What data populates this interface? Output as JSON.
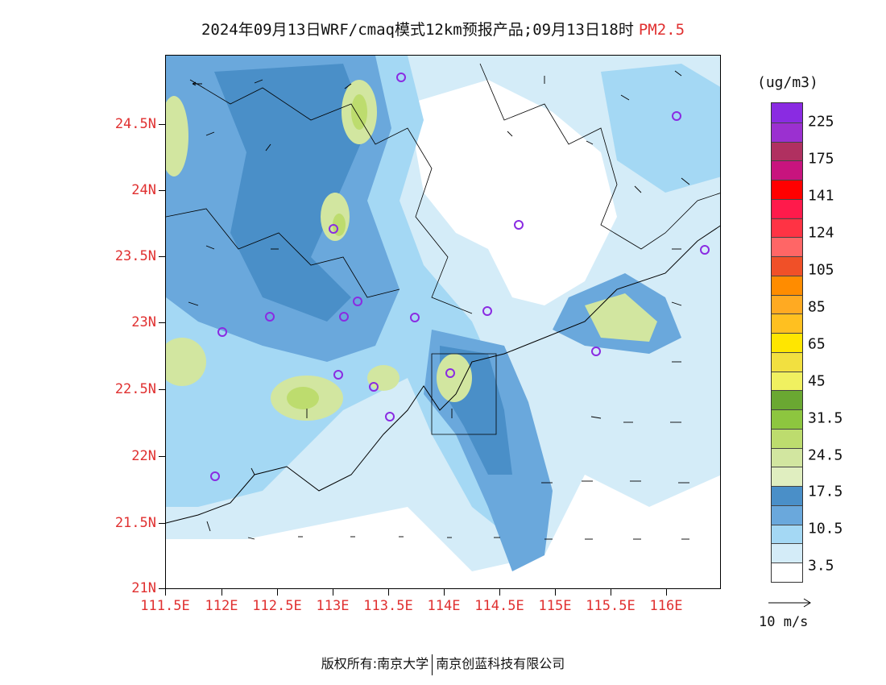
{
  "title": {
    "main": "2024年09月13日WRF/cmaq模式12km预报产品;09月13日18时",
    "species": "PM2.5"
  },
  "axes": {
    "lat_labels": [
      "24.5N",
      "24N",
      "23.5N",
      "23N",
      "22.5N",
      "22N",
      "21.5N",
      "21N"
    ],
    "lon_labels": [
      "111.5E",
      "112E",
      "112.5E",
      "113E",
      "113.5E",
      "114E",
      "114.5E",
      "115E",
      "115.5E",
      "116E"
    ]
  },
  "legend": {
    "unit": "(ug/m3)",
    "labels": [
      "225",
      "175",
      "141",
      "124",
      "105",
      "85",
      "65",
      "45",
      "31.5",
      "24.5",
      "17.5",
      "10.5",
      "3.5"
    ],
    "colors": [
      "#8a2be2",
      "#9b30d0",
      "#b03060",
      "#c8147e",
      "#ff0000",
      "#ff1a4b",
      "#ff3344",
      "#ff6666",
      "#f05028",
      "#ff8c00",
      "#ffaa22",
      "#ffc020",
      "#ffe600",
      "#f2e040",
      "#f0f060",
      "#6aa832",
      "#8dc63f",
      "#bddc6e",
      "#d2e6a0",
      "#e0eec0",
      "#4a8fc8",
      "#6aa8dc",
      "#a4d8f4",
      "#d4ecf8",
      "#ffffff"
    ]
  },
  "wind_key": {
    "label": "10 m/s"
  },
  "footer": {
    "copyright": "版权所有:南京大学",
    "company": "南京创蓝科技有限公司"
  }
}
